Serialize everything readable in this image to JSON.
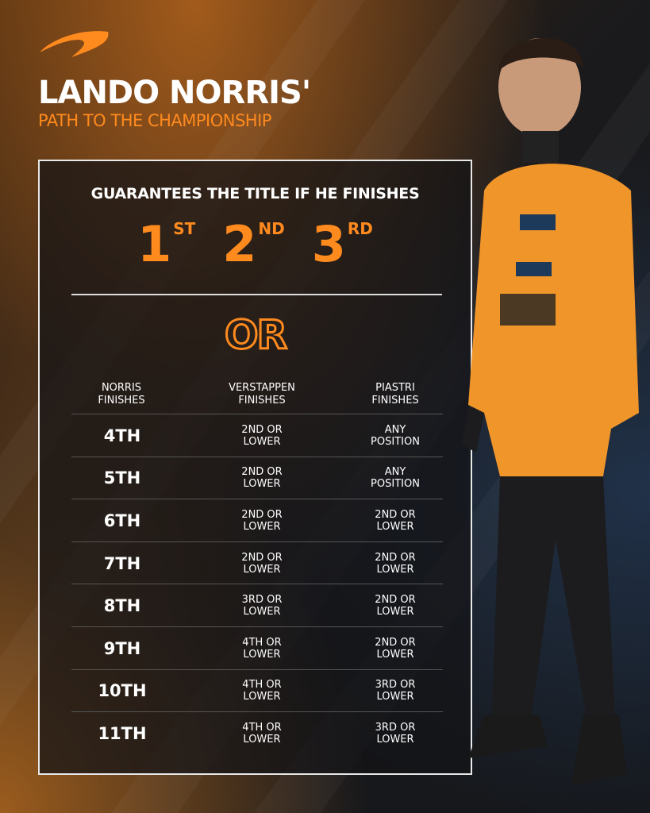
{
  "header": {
    "title": "LANDO NORRIS'",
    "subtitle": "PATH TO THE CHAMPIONSHIP"
  },
  "panel": {
    "guarantee_text": "GUARANTEES THE TITLE IF HE FINISHES",
    "places": [
      {
        "num": "1",
        "suffix": "ST"
      },
      {
        "num": "2",
        "suffix": "ND"
      },
      {
        "num": "3",
        "suffix": "RD"
      }
    ],
    "or_text": "OR",
    "columns": [
      "NORRIS\nFINISHES",
      "VERSTAPPEN\nFINISHES",
      "PIASTRI\nFINISHES"
    ],
    "rows": [
      {
        "norris": "4TH",
        "verstappen": "2ND OR\nLOWER",
        "piastri": "ANY\nPOSITION"
      },
      {
        "norris": "5TH",
        "verstappen": "2ND OR\nLOWER",
        "piastri": "ANY\nPOSITION"
      },
      {
        "norris": "6TH",
        "verstappen": "2ND OR\nLOWER",
        "piastri": "2ND OR\nLOWER"
      },
      {
        "norris": "7TH",
        "verstappen": "2ND OR\nLOWER",
        "piastri": "2ND OR\nLOWER"
      },
      {
        "norris": "8TH",
        "verstappen": "3RD OR\nLOWER",
        "piastri": "2ND OR\nLOWER"
      },
      {
        "norris": "9TH",
        "verstappen": "4TH OR\nLOWER",
        "piastri": "2ND OR\nLOWER"
      },
      {
        "norris": "10TH",
        "verstappen": "4TH OR\nLOWER",
        "piastri": "3RD OR\nLOWER"
      },
      {
        "norris": "11TH",
        "verstappen": "4TH OR\nLOWER",
        "piastri": "3RD OR\nLOWER"
      }
    ]
  },
  "colors": {
    "accent": "#ff8a1e",
    "border": "#e8e8e8"
  },
  "icons": {
    "logo": "mclaren-speedmark-logo"
  }
}
